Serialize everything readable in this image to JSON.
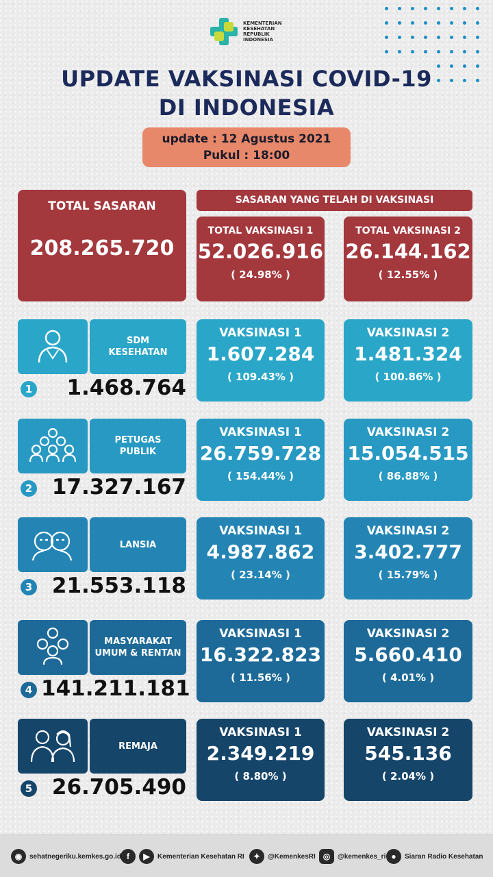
{
  "logo": {
    "text_lines": [
      "KEMENTERIAN",
      "KESEHATAN",
      "REPUBLIK",
      "INDONESIA"
    ]
  },
  "title_line1": "UPDATE VAKSINASI COVID-19",
  "title_line2": "DI INDONESIA",
  "update": {
    "date": "update : 12 Agustus 2021",
    "time": "Pukul : 18:00"
  },
  "total": {
    "label": "TOTAL SASARAN",
    "value": "208.265.720",
    "header": "SASARAN YANG TELAH DI VAKSINASI",
    "dose1": {
      "label": "TOTAL VAKSINASI 1",
      "value": "52.026.916",
      "pct": "( 24.98% )"
    },
    "dose2": {
      "label": "TOTAL VAKSINASI 2",
      "value": "26.144.162",
      "pct": "( 12.55% )"
    }
  },
  "categories": [
    {
      "num": "1",
      "label1": "SDM",
      "label2": "KESEHATAN",
      "total": "1.468.764",
      "v1_label": "VAKSINASI 1",
      "v1": "1.607.284",
      "v1_pct": "( 109.43% )",
      "v2_label": "VAKSINASI 2",
      "v2": "1.481.324",
      "v2_pct": "( 100.86% )",
      "color": "#2aa6c8"
    },
    {
      "num": "2",
      "label1": "PETUGAS",
      "label2": "PUBLIK",
      "total": "17.327.167",
      "v1_label": "VAKSINASI 1",
      "v1": "26.759.728",
      "v1_pct": "( 154.44% )",
      "v2_label": "VAKSINASI 2",
      "v2": "15.054.515",
      "v2_pct": "( 86.88% )",
      "color": "#2899c2"
    },
    {
      "num": "3",
      "label1": "LANSIA",
      "label2": "",
      "total": "21.553.118",
      "v1_label": "VAKSINASI 1",
      "v1": "4.987.862",
      "v1_pct": "( 23.14% )",
      "v2_label": "VAKSINASI 2",
      "v2": "3.402.777",
      "v2_pct": "( 15.79% )",
      "color": "#2485b5"
    },
    {
      "num": "4",
      "label1": "MASYARAKAT",
      "label2": "UMUM & RENTAN",
      "total": "141.211.181",
      "v1_label": "VAKSINASI 1",
      "v1": "16.322.823",
      "v1_pct": "( 11.56% )",
      "v2_label": "VAKSINASI 2",
      "v2": "5.660.410",
      "v2_pct": "( 4.01% )",
      "color": "#1d6a98"
    },
    {
      "num": "5",
      "label1": "REMAJA",
      "label2": "",
      "total": "26.705.490",
      "v1_label": "VAKSINASI 1",
      "v1": "2.349.219",
      "v1_pct": "( 8.80% )",
      "v2_label": "VAKSINASI 2",
      "v2": "545.136",
      "v2_pct": "( 2.04% )",
      "color": "#16456a"
    }
  ],
  "footer": {
    "website": "sehatnegeriku.kemkes.go.id",
    "facebook_youtube": "Kementerian Kesehatan RI",
    "twitter": "@KemenkesRI",
    "instagram": "@kemenkes_ri",
    "radio": "Siaran Radio Kesehatan"
  }
}
